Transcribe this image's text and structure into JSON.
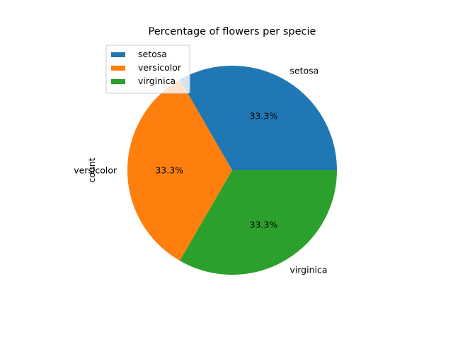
{
  "chart_data": {
    "type": "pie",
    "title": "Percentage of flowers per specie",
    "ylabel": "count",
    "categories": [
      "setosa",
      "versicolor",
      "virginica"
    ],
    "values": [
      50,
      50,
      50
    ],
    "percent_labels": [
      "33.3%",
      "33.3%",
      "33.3%"
    ],
    "colors": [
      "#1f77b4",
      "#ff7f0e",
      "#2ca02c"
    ],
    "legend": {
      "placement": "upper-left",
      "entries": [
        "setosa",
        "versicolor",
        "virginica"
      ]
    }
  }
}
